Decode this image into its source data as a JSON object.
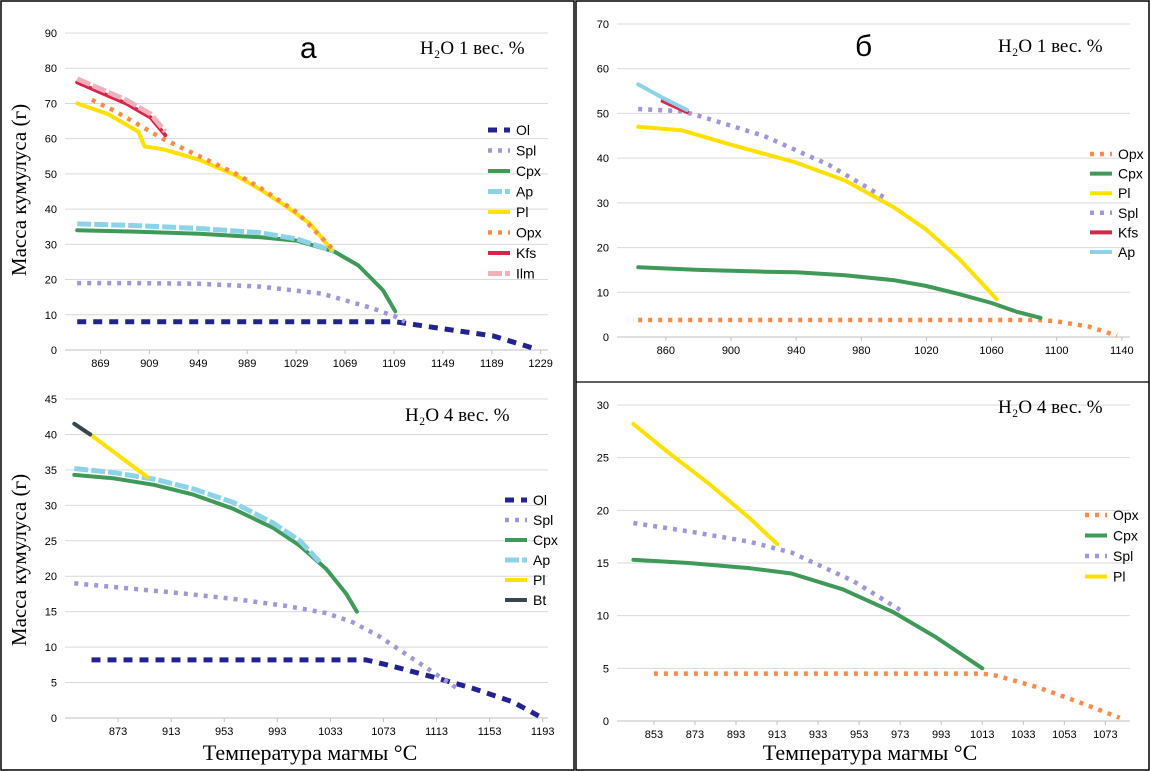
{
  "chart_data": [
    {
      "id": "a-top",
      "type": "line",
      "panel_letter": "а",
      "annotation": "H₂O 1 вес. %",
      "ylabel": "Масса кумулуса (г)",
      "xlabel": "",
      "ylim": [
        0,
        90
      ],
      "yticks": [
        0,
        10,
        20,
        30,
        40,
        50,
        60,
        70,
        80,
        90
      ],
      "xlim": [
        840,
        1235
      ],
      "xticks": [
        869,
        909,
        949,
        989,
        1029,
        1069,
        1109,
        1149,
        1189,
        1229
      ],
      "grid": "horizontal",
      "legend_position": "right",
      "series": [
        {
          "name": "Ol",
          "color": "#23238f",
          "style": "dash-thick",
          "x": [
            850,
            1100,
            1110,
            1150,
            1190,
            1225
          ],
          "y": [
            8,
            8,
            8,
            6,
            4,
            0.3
          ]
        },
        {
          "name": "Spl",
          "color": "#9f97d8",
          "style": "dot",
          "x": [
            850,
            900,
            950,
            1000,
            1050,
            1090,
            1110,
            1118
          ],
          "y": [
            19,
            19,
            18.8,
            18,
            16,
            12,
            9.5,
            8
          ]
        },
        {
          "name": "Cpx",
          "color": "#3f9a5a",
          "style": "solid",
          "x": [
            850,
            900,
            950,
            1000,
            1030,
            1060,
            1080,
            1100,
            1110
          ],
          "y": [
            34,
            33.6,
            33,
            32,
            31,
            28,
            24,
            17,
            11
          ]
        },
        {
          "name": "Ap",
          "color": "#8dd3e8",
          "style": "dash",
          "x": [
            850,
            900,
            950,
            1000,
            1030,
            1060
          ],
          "y": [
            35.8,
            35.3,
            34.5,
            33.3,
            31.5,
            28
          ]
        },
        {
          "name": "Pl",
          "color": "#ffe000",
          "style": "solid",
          "x": [
            850,
            875,
            900,
            905,
            920,
            950,
            980,
            1000,
            1020,
            1040,
            1058
          ],
          "y": [
            70,
            67,
            62,
            57.8,
            57,
            54,
            49.5,
            45.5,
            41,
            36,
            28.5
          ]
        },
        {
          "name": "Opx",
          "color": "#ff8a4a",
          "style": "dot",
          "x": [
            862,
            880,
            900,
            920,
            950,
            980,
            1000,
            1030,
            1058
          ],
          "y": [
            71,
            68,
            64,
            60,
            55,
            50,
            46,
            39,
            29
          ]
        },
        {
          "name": "Kfs",
          "color": "#d8254a",
          "style": "solid",
          "x": [
            850,
            870,
            890,
            910,
            922
          ],
          "y": [
            76,
            73,
            70,
            66,
            61
          ]
        },
        {
          "name": "Ilm",
          "color": "#f0b1bc",
          "style": "dash",
          "x": [
            850,
            870,
            890,
            910,
            922
          ],
          "y": [
            77,
            74,
            71,
            67,
            62
          ]
        }
      ]
    },
    {
      "id": "a-bottom",
      "type": "line",
      "panel_letter": "",
      "annotation": "H₂O 4 вес. %",
      "ylabel": "Масса кумулуса (г)",
      "xlabel": "Температура магмы °C",
      "ylim": [
        0,
        45
      ],
      "yticks": [
        0,
        5,
        10,
        15,
        20,
        25,
        30,
        35,
        40,
        45
      ],
      "xlim": [
        833,
        1197
      ],
      "xticks": [
        873,
        913,
        953,
        993,
        1033,
        1073,
        1113,
        1153,
        1193
      ],
      "grid": "horizontal",
      "legend_position": "right",
      "series": [
        {
          "name": "Ol",
          "color": "#23238f",
          "style": "dash-thick",
          "x": [
            853,
            900,
            950,
            1000,
            1050,
            1060,
            1080,
            1110,
            1140,
            1170,
            1190
          ],
          "y": [
            8.2,
            8.2,
            8.2,
            8.2,
            8.2,
            8.2,
            7.3,
            5.8,
            4.2,
            2.3,
            0.3
          ]
        },
        {
          "name": "Spl",
          "color": "#9f97d8",
          "style": "dot",
          "x": [
            840,
            880,
            920,
            960,
            1000,
            1030,
            1050,
            1070,
            1090,
            1110,
            1130
          ],
          "y": [
            19,
            18.3,
            17.6,
            16.8,
            15.8,
            14.8,
            13.5,
            11.5,
            9,
            6.5,
            4
          ]
        },
        {
          "name": "Cpx",
          "color": "#3f9a5a",
          "style": "solid",
          "x": [
            840,
            870,
            900,
            930,
            960,
            990,
            1010,
            1030,
            1045,
            1053
          ],
          "y": [
            34.3,
            33.8,
            32.9,
            31.5,
            29.5,
            26.8,
            24.3,
            21,
            17.5,
            15
          ]
        },
        {
          "name": "Ap",
          "color": "#8dd3e8",
          "style": "dash",
          "x": [
            840,
            870,
            900,
            930,
            960,
            990,
            1010,
            1025
          ],
          "y": [
            35.2,
            34.6,
            33.7,
            32.3,
            30.4,
            27.5,
            25,
            22
          ]
        },
        {
          "name": "Pl",
          "color": "#ffe000",
          "style": "solid",
          "x": [
            852,
            870,
            895
          ],
          "y": [
            40,
            37.5,
            34
          ]
        },
        {
          "name": "Bt",
          "color": "#37474f",
          "style": "solid",
          "x": [
            840,
            852
          ],
          "y": [
            41.5,
            40
          ]
        }
      ]
    },
    {
      "id": "b-top",
      "type": "line",
      "panel_letter": "б",
      "annotation": "H₂O 1 вес. %",
      "ylabel": "",
      "xlabel": "",
      "ylim": [
        0,
        70
      ],
      "yticks": [
        0,
        10,
        20,
        30,
        40,
        50,
        60,
        70
      ],
      "xlim": [
        830,
        1145
      ],
      "xticks": [
        860,
        900,
        940,
        980,
        1020,
        1060,
        1100,
        1140
      ],
      "grid": "horizontal",
      "legend_position": "right",
      "series": [
        {
          "name": "Opx",
          "color": "#ff8a4a",
          "style": "dot",
          "x": [
            843,
            900,
            950,
            1000,
            1050,
            1090,
            1100,
            1120,
            1137
          ],
          "y": [
            3.8,
            3.8,
            3.8,
            3.8,
            3.8,
            3.8,
            3.5,
            2.3,
            0.3
          ]
        },
        {
          "name": "Cpx",
          "color": "#3f9a5a",
          "style": "solid",
          "x": [
            843,
            880,
            920,
            940,
            970,
            1000,
            1020,
            1040,
            1060,
            1075,
            1090
          ],
          "y": [
            15.6,
            15,
            14.6,
            14.5,
            13.8,
            12.7,
            11.4,
            9.6,
            7.6,
            5.7,
            4.3
          ]
        },
        {
          "name": "Pl",
          "color": "#ffe000",
          "style": "solid",
          "x": [
            843,
            870,
            900,
            940,
            970,
            1000,
            1020,
            1040,
            1063
          ],
          "y": [
            47,
            46.2,
            43,
            39,
            35,
            29,
            24,
            17.5,
            8.5
          ]
        },
        {
          "name": "Spl",
          "color": "#9f97d8",
          "style": "dot",
          "x": [
            843,
            870,
            880,
            920,
            960,
            995
          ],
          "y": [
            51,
            50.5,
            49.5,
            45,
            38.5,
            31
          ]
        },
        {
          "name": "Kfs",
          "color": "#d8254a",
          "style": "solid",
          "x": [
            858,
            873
          ],
          "y": [
            52.8,
            50.3
          ]
        },
        {
          "name": "Ap",
          "color": "#8dd3e8",
          "style": "solid",
          "x": [
            843,
            858,
            873
          ],
          "y": [
            56.5,
            53.5,
            50.8
          ]
        }
      ]
    },
    {
      "id": "b-bottom",
      "type": "line",
      "panel_letter": "",
      "annotation": "H₂O 4 вес. %",
      "ylabel": "",
      "xlabel": "Температура магмы °C",
      "ylim": [
        0,
        30
      ],
      "yticks": [
        0,
        5,
        10,
        15,
        20,
        25,
        30
      ],
      "xlim": [
        835,
        1085
      ],
      "xticks": [
        853,
        873,
        893,
        913,
        933,
        953,
        973,
        993,
        1013,
        1033,
        1053,
        1073
      ],
      "grid": "horizontal",
      "legend_position": "right",
      "series": [
        {
          "name": "Opx",
          "color": "#ff8a4a",
          "style": "dot",
          "x": [
            853,
            900,
            950,
            1000,
            1013,
            1020,
            1040,
            1060,
            1080
          ],
          "y": [
            4.5,
            4.5,
            4.5,
            4.5,
            4.5,
            4.3,
            3.2,
            1.8,
            0.3
          ]
        },
        {
          "name": "Cpx",
          "color": "#3f9a5a",
          "style": "solid",
          "x": [
            843,
            870,
            900,
            920,
            945,
            970,
            990,
            1013
          ],
          "y": [
            15.3,
            15,
            14.5,
            14,
            12.5,
            10.3,
            8,
            5
          ]
        },
        {
          "name": "Spl",
          "color": "#9f97d8",
          "style": "dot",
          "x": [
            843,
            870,
            900,
            920,
            950,
            975
          ],
          "y": [
            18.8,
            18,
            17,
            16,
            13.3,
            10.3
          ]
        },
        {
          "name": "Pl",
          "color": "#ffe000",
          "style": "solid",
          "x": [
            843,
            860,
            880,
            900,
            913
          ],
          "y": [
            28.2,
            25.5,
            22.5,
            19.2,
            16.8
          ]
        }
      ]
    }
  ]
}
